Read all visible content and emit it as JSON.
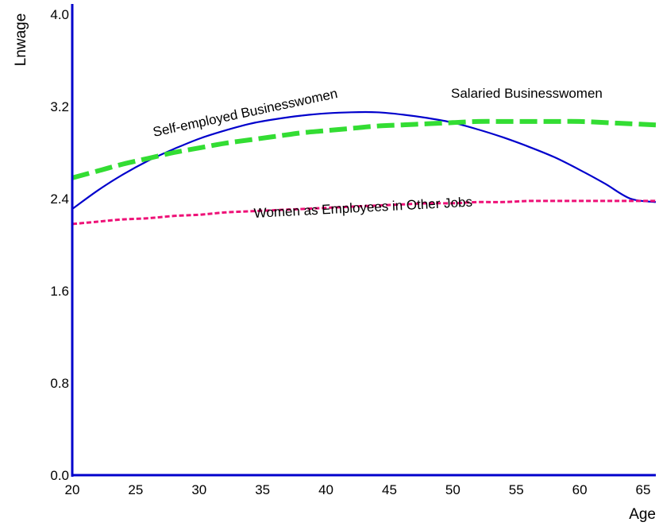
{
  "chart_data": {
    "type": "line",
    "xlabel": "Age",
    "ylabel": "Lnwage",
    "xlim": [
      20,
      66
    ],
    "ylim": [
      0.0,
      4.0
    ],
    "x_ticks": [
      "20",
      "25",
      "30",
      "35",
      "40",
      "45",
      "50",
      "55",
      "60",
      "65"
    ],
    "y_ticks": [
      "0.0",
      "0.8",
      "1.6",
      "2.4",
      "3.2",
      "4.0"
    ],
    "grid": false,
    "x": [
      20,
      22,
      24,
      26,
      28,
      30,
      32,
      34,
      36,
      38,
      40,
      42,
      44,
      46,
      48,
      50,
      52,
      54,
      56,
      58,
      60,
      62,
      64,
      66
    ],
    "series": [
      {
        "name": "Self-employed  Businesswomen",
        "color": "#0000cc",
        "style": "solid",
        "values": [
          2.31,
          2.47,
          2.61,
          2.73,
          2.83,
          2.92,
          2.99,
          3.05,
          3.09,
          3.12,
          3.14,
          3.15,
          3.15,
          3.13,
          3.1,
          3.06,
          3.0,
          2.93,
          2.85,
          2.76,
          2.65,
          2.53,
          2.4,
          2.37
        ]
      },
      {
        "name": "Salaried Businesswomen",
        "color": "#33dd33",
        "style": "dashed",
        "values": [
          2.58,
          2.64,
          2.7,
          2.75,
          2.8,
          2.84,
          2.88,
          2.91,
          2.94,
          2.97,
          2.99,
          3.01,
          3.03,
          3.04,
          3.05,
          3.06,
          3.07,
          3.07,
          3.07,
          3.07,
          3.07,
          3.06,
          3.05,
          3.04
        ]
      },
      {
        "name": "Women as Employees in Other Jobs",
        "color": "#ee1177",
        "style": "dotted",
        "values": [
          2.18,
          2.2,
          2.22,
          2.23,
          2.25,
          2.26,
          2.28,
          2.29,
          2.3,
          2.31,
          2.32,
          2.33,
          2.34,
          2.35,
          2.36,
          2.36,
          2.37,
          2.37,
          2.38,
          2.38,
          2.38,
          2.38,
          2.38,
          2.38
        ]
      }
    ],
    "annotations": [
      {
        "text": "Self-employed  Businesswomen",
        "series": 0
      },
      {
        "text": "Salaried Businesswomen",
        "series": 1
      },
      {
        "text": "Women as Employees in Other Jobs",
        "series": 2
      }
    ]
  }
}
